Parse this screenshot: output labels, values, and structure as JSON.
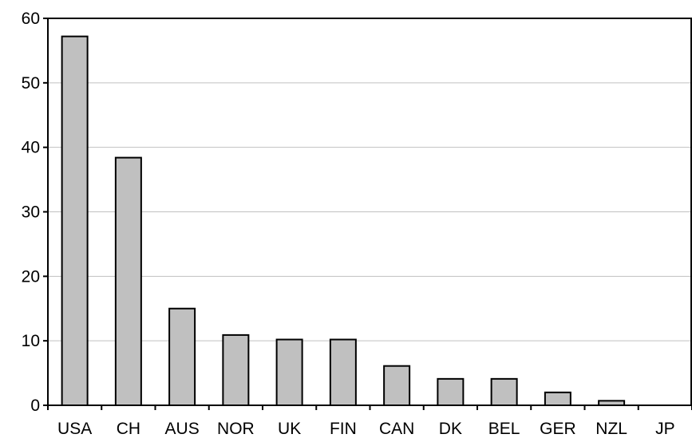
{
  "chart_data": {
    "type": "bar",
    "title": "",
    "xlabel": "",
    "ylabel": "",
    "categories": [
      "USA",
      "CH",
      "AUS",
      "NOR",
      "UK",
      "FIN",
      "CAN",
      "DK",
      "BEL",
      "GER",
      "NZL",
      "JP"
    ],
    "values": [
      57.2,
      38.4,
      15.0,
      10.9,
      10.2,
      10.2,
      6.1,
      4.1,
      4.1,
      2.0,
      0.7,
      0.0
    ],
    "ylim": [
      0,
      60
    ],
    "yticks": [
      "0",
      "10",
      "20",
      "30",
      "40",
      "50",
      "60"
    ],
    "grid": true,
    "legend": "none",
    "colors": {
      "bar_fill": "#c0c0c0",
      "bar_stroke": "#000000",
      "grid": "#c0c0c0",
      "axis": "#000000",
      "background": "#ffffff"
    }
  }
}
